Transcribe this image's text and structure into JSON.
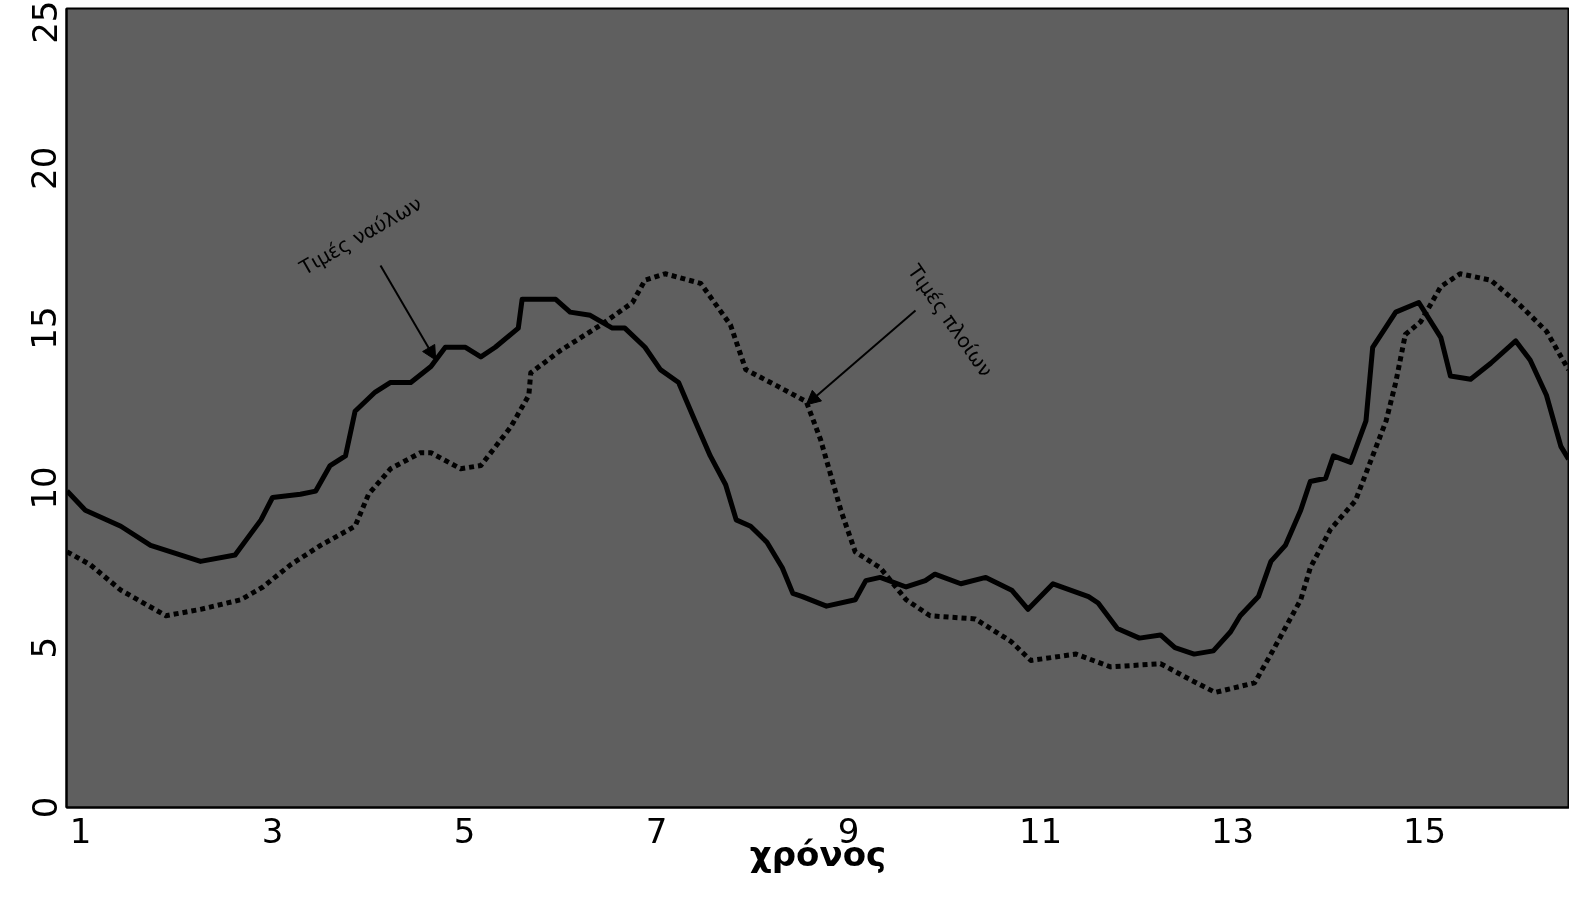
{
  "chart_data": {
    "type": "line",
    "xlabel": "χρόνος",
    "xlim": [
      0.854,
      16.51
    ],
    "ylim": [
      0,
      25
    ],
    "xticks": [
      1,
      3,
      5,
      7,
      9,
      11,
      13,
      15
    ],
    "yticks": [
      0,
      5,
      10,
      15,
      20,
      25
    ],
    "grid": false,
    "marker": "none",
    "series": [
      {
        "color": "#000000",
        "line_style": "solid",
        "x": [
          0.86,
          1.05,
          1.42,
          1.73,
          2.25,
          2.61,
          2.88,
          3.0,
          3.29,
          3.45,
          3.6,
          3.76,
          3.86,
          4.07,
          4.23,
          4.44,
          4.65,
          4.8,
          5.01,
          5.17,
          5.32,
          5.56,
          5.6,
          5.95,
          6.1,
          6.31,
          6.54,
          6.67,
          6.88,
          7.04,
          7.23,
          7.4,
          7.56,
          7.72,
          7.83,
          7.98,
          8.15,
          8.31,
          8.42,
          8.52,
          8.77,
          9.07,
          9.18,
          9.33,
          9.6,
          9.8,
          9.9,
          10.17,
          10.43,
          10.7,
          10.87,
          11.13,
          11.5,
          11.6,
          11.8,
          12.03,
          12.25,
          12.4,
          12.6,
          12.8,
          12.98,
          13.08,
          13.27,
          13.4,
          13.55,
          13.71,
          13.81,
          13.97,
          14.05,
          14.23,
          14.39,
          14.46,
          14.7,
          14.94,
          15.17,
          15.27,
          15.48,
          15.69,
          15.95,
          16.1,
          16.27,
          16.42,
          16.5
        ],
        "values": [
          9.9,
          9.3,
          8.8,
          8.2,
          7.7,
          7.9,
          9.0,
          9.7,
          9.8,
          9.9,
          10.7,
          11.0,
          12.4,
          13.0,
          13.3,
          13.3,
          13.8,
          14.4,
          14.4,
          14.1,
          14.4,
          15.0,
          15.9,
          15.9,
          15.5,
          15.4,
          15.0,
          15.0,
          14.4,
          13.7,
          13.3,
          12.1,
          11.0,
          10.1,
          9.0,
          8.8,
          8.3,
          7.5,
          6.7,
          6.6,
          6.3,
          6.5,
          7.1,
          7.2,
          6.9,
          7.1,
          7.3,
          7.0,
          7.2,
          6.8,
          6.2,
          7.0,
          6.6,
          6.4,
          5.6,
          5.3,
          5.4,
          5.0,
          4.8,
          4.9,
          5.5,
          6.0,
          6.6,
          7.7,
          8.2,
          9.3,
          10.2,
          10.3,
          11.0,
          10.8,
          12.1,
          14.4,
          15.5,
          15.8,
          14.7,
          13.5,
          13.4,
          13.9,
          14.6,
          14.0,
          12.9,
          11.3,
          10.9
        ]
      },
      {
        "color": "#000000",
        "line_style": "dotted",
        "x": [
          0.86,
          1.1,
          1.42,
          1.89,
          2.25,
          2.67,
          2.9,
          3.19,
          3.5,
          3.86,
          4.0,
          4.23,
          4.54,
          4.65,
          4.96,
          5.17,
          5.48,
          5.67,
          5.69,
          6.0,
          6.42,
          6.75,
          6.88,
          7.09,
          7.46,
          7.77,
          7.93,
          8.25,
          8.56,
          8.71,
          8.92,
          9.07,
          9.33,
          9.6,
          9.85,
          10.32,
          10.69,
          10.9,
          11.37,
          11.73,
          12.25,
          12.56,
          12.82,
          13.23,
          13.4,
          13.71,
          13.81,
          14.02,
          14.28,
          14.6,
          14.7,
          14.8,
          14.96,
          15.17,
          15.37,
          15.69,
          16.0,
          16.27,
          16.5
        ],
        "values": [
          8.0,
          7.6,
          6.8,
          6.0,
          6.2,
          6.5,
          6.9,
          7.6,
          8.2,
          8.8,
          9.8,
          10.6,
          11.1,
          11.1,
          10.6,
          10.7,
          11.9,
          12.9,
          13.6,
          14.3,
          15.1,
          15.8,
          16.5,
          16.7,
          16.4,
          15.1,
          13.7,
          13.2,
          12.7,
          11.5,
          9.3,
          8.0,
          7.5,
          6.5,
          6.0,
          5.9,
          5.2,
          4.6,
          4.8,
          4.4,
          4.5,
          4.0,
          3.6,
          3.9,
          4.8,
          6.5,
          7.5,
          8.7,
          9.6,
          12.1,
          13.3,
          14.8,
          15.2,
          16.3,
          16.7,
          16.5,
          15.7,
          14.9,
          13.7
        ]
      }
    ],
    "annotations": [
      {
        "text": "Τιμές ναύλων",
        "x": 4.7,
        "y": 14.0
      },
      {
        "text": "Τιμές πλοίων",
        "x": 8.56,
        "y": 12.6
      }
    ]
  }
}
